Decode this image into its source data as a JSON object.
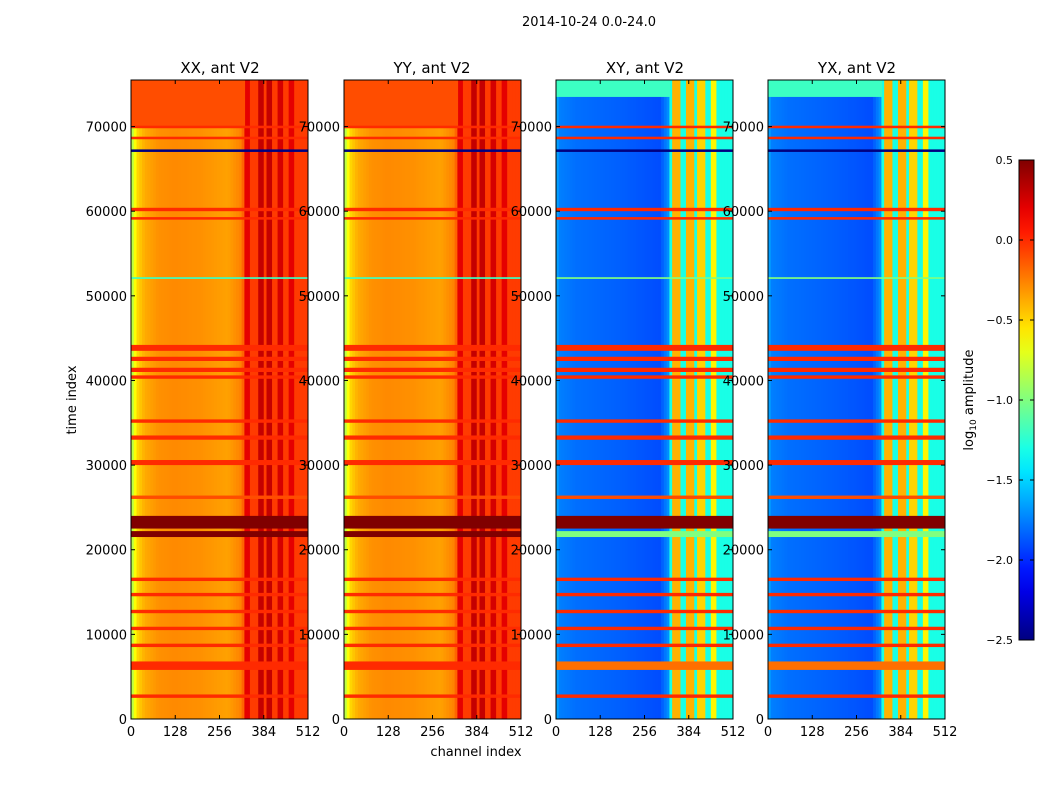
{
  "chart_data": {
    "type": "heatmap",
    "suptitle": "2014-10-24 0.0-24.0",
    "xlabel": "channel index",
    "ylabel": "time index",
    "xlim": [
      0,
      512
    ],
    "ylim": [
      0,
      75500
    ],
    "xticks": [
      0,
      128,
      256,
      384,
      512
    ],
    "yticks": [
      0,
      10000,
      20000,
      30000,
      40000,
      50000,
      60000,
      70000
    ],
    "colorbar": {
      "label": "log",
      "label_sub": "10",
      "label_rest": " amplitude",
      "range": [
        -2.5,
        0.5
      ],
      "ticks": [
        0.5,
        0.0,
        -0.5,
        -1.0,
        -1.5,
        -2.0,
        -2.5
      ],
      "tick_labels": [
        "0.5",
        "0.0",
        "−0.5",
        "−1.0",
        "−1.5",
        "−2.0",
        "−2.5"
      ],
      "colormap": "jet"
    },
    "panels": [
      {
        "title": "XX, ant V2",
        "kind": "auto"
      },
      {
        "title": "YY, ant V2",
        "kind": "auto"
      },
      {
        "title": "XY, ant V2",
        "kind": "cross"
      },
      {
        "title": "YX, ant V2",
        "kind": "cross"
      }
    ],
    "profiles": {
      "auto": {
        "base": [
          [
            0,
            -0.95
          ],
          [
            8,
            -0.7
          ],
          [
            20,
            -0.5
          ],
          [
            40,
            -0.38
          ],
          [
            80,
            -0.3
          ],
          [
            128,
            -0.28
          ],
          [
            200,
            -0.3
          ],
          [
            280,
            -0.35
          ],
          [
            320,
            -0.25
          ],
          [
            330,
            -0.05
          ],
          [
            512,
            -0.05
          ]
        ],
        "bright_bands": [
          {
            "ch": [
              330,
              345
            ],
            "add": 0.25
          },
          {
            "ch": [
              365,
              382
            ],
            "add": 0.35
          },
          {
            "ch": [
              395,
              410
            ],
            "add": 0.35
          },
          {
            "ch": [
              425,
              440
            ],
            "add": 0.3
          },
          {
            "ch": [
              455,
              470
            ],
            "add": 0.25
          }
        ],
        "top_block": {
          "time": [
            70000,
            75500
          ],
          "value": -0.1
        }
      },
      "cross": {
        "base": [
          [
            0,
            -1.6
          ],
          [
            10,
            -1.75
          ],
          [
            60,
            -1.8
          ],
          [
            200,
            -1.85
          ],
          [
            300,
            -1.9
          ],
          [
            325,
            -1.7
          ],
          [
            330,
            -1.3
          ],
          [
            512,
            -1.3
          ],
          [
            500,
            -1.6
          ]
        ],
        "bright_bands": [
          {
            "ch": [
              335,
              360
            ],
            "add": 0.9
          },
          {
            "ch": [
              375,
              400
            ],
            "add": 0.9
          },
          {
            "ch": [
              410,
              430
            ],
            "add": 0.8
          },
          {
            "ch": [
              445,
              465
            ],
            "add": 0.7
          }
        ],
        "top_block": {
          "time": [
            73500,
            75500
          ],
          "value": -1.2
        }
      }
    },
    "flag_rows": [
      {
        "time": [
          22500,
          24000
        ],
        "auto": 0.5,
        "cross": 0.5
      },
      {
        "time": [
          21500,
          22200
        ],
        "auto": 0.5,
        "cross": -1.0
      },
      {
        "time": [
          43500,
          44200
        ],
        "auto": 0.0,
        "cross": 0.0
      },
      {
        "time": [
          42300,
          42800
        ],
        "auto": 0.0,
        "cross": 0.0
      },
      {
        "time": [
          41000,
          41500
        ],
        "auto": 0.0,
        "cross": 0.0
      },
      {
        "time": [
          40200,
          40600
        ],
        "auto": 0.0,
        "cross": 0.0
      },
      {
        "time": [
          35000,
          35400
        ],
        "auto": 0.0,
        "cross": 0.0
      },
      {
        "time": [
          33000,
          33500
        ],
        "auto": 0.0,
        "cross": 0.0
      },
      {
        "time": [
          30000,
          30600
        ],
        "auto": 0.0,
        "cross": 0.0
      },
      {
        "time": [
          26000,
          26400
        ],
        "auto": -0.1,
        "cross": -0.1
      },
      {
        "time": [
          16300,
          16700
        ],
        "auto": 0.0,
        "cross": 0.0
      },
      {
        "time": [
          14500,
          14900
        ],
        "auto": 0.0,
        "cross": 0.0
      },
      {
        "time": [
          12500,
          12900
        ],
        "auto": 0.0,
        "cross": 0.0
      },
      {
        "time": [
          10500,
          10900
        ],
        "auto": 0.0,
        "cross": 0.0
      },
      {
        "time": [
          8500,
          8900
        ],
        "auto": 0.0,
        "cross": 0.0
      },
      {
        "time": [
          5800,
          6800
        ],
        "auto": 0.0,
        "cross": -0.2
      },
      {
        "time": [
          2500,
          2900
        ],
        "auto": 0.0,
        "cross": 0.0
      },
      {
        "time": [
          60000,
          60400
        ],
        "auto": 0.0,
        "cross": 0.0
      },
      {
        "time": [
          59000,
          59300
        ],
        "auto": 0.0,
        "cross": 0.0
      },
      {
        "time": [
          69800,
          70100
        ],
        "auto": 0.0,
        "cross": 0.0
      },
      {
        "time": [
          68500,
          68800
        ],
        "auto": 0.0,
        "cross": 0.0
      },
      {
        "time": [
          67000,
          67300
        ],
        "auto": -2.5,
        "cross": -2.5
      },
      {
        "time": [
          52000,
          52200
        ],
        "auto": -1.2,
        "cross": -1.0
      }
    ]
  }
}
